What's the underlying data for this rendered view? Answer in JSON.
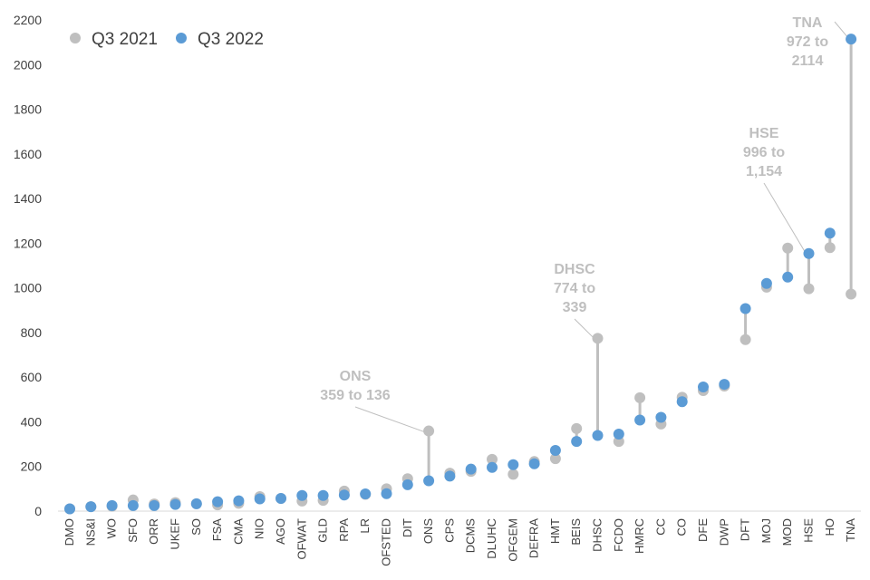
{
  "chart_data": {
    "type": "scatter",
    "ylim": [
      0,
      2200
    ],
    "yticks": [
      0,
      200,
      400,
      600,
      800,
      1000,
      1200,
      1400,
      1600,
      1800,
      2000,
      2200
    ],
    "legend_position": "top-left",
    "grid": false,
    "categories": [
      "DMO",
      "NS&I",
      "WO",
      "SFO",
      "ORR",
      "UKEF",
      "SO",
      "FSA",
      "CMA",
      "NIO",
      "AGO",
      "OFWAT",
      "GLD",
      "RPA",
      "LR",
      "OFSTED",
      "DIT",
      "ONS",
      "CPS",
      "DCMS",
      "DLUHC",
      "OFGEM",
      "DEFRA",
      "HMT",
      "BEIS",
      "DHSC",
      "FCDO",
      "HMRC",
      "CC",
      "CO",
      "DFE",
      "DWP",
      "DFT",
      "MOJ",
      "MOD",
      "HSE",
      "HO",
      "TNA"
    ],
    "series": [
      {
        "name": "Q3 2021",
        "color": "#bfbfbf",
        "values": [
          10,
          20,
          22,
          50,
          32,
          38,
          33,
          28,
          35,
          65,
          57,
          45,
          48,
          90,
          75,
          100,
          145,
          359,
          170,
          178,
          232,
          165,
          222,
          235,
          370,
          774,
          312,
          508,
          390,
          510,
          540,
          560,
          768,
          1003,
          1178,
          996,
          1180,
          972
        ]
      },
      {
        "name": "Q3 2022",
        "color": "#5b9bd5",
        "values": [
          10,
          20,
          25,
          25,
          25,
          30,
          33,
          42,
          46,
          55,
          57,
          70,
          70,
          72,
          77,
          78,
          118,
          136,
          157,
          188,
          196,
          208,
          212,
          272,
          312,
          339,
          345,
          408,
          420,
          490,
          556,
          568,
          907,
          1020,
          1048,
          1154,
          1245,
          2114
        ]
      }
    ],
    "annotations": [
      {
        "category": "ONS",
        "lines": [
          "ONS",
          "359 to 136"
        ]
      },
      {
        "category": "DHSC",
        "lines": [
          "DHSC",
          "774 to",
          "339"
        ]
      },
      {
        "category": "HSE",
        "lines": [
          "HSE",
          "996 to",
          "1,154"
        ]
      },
      {
        "category": "TNA",
        "lines": [
          "TNA",
          "972 to",
          "2114"
        ]
      }
    ]
  }
}
